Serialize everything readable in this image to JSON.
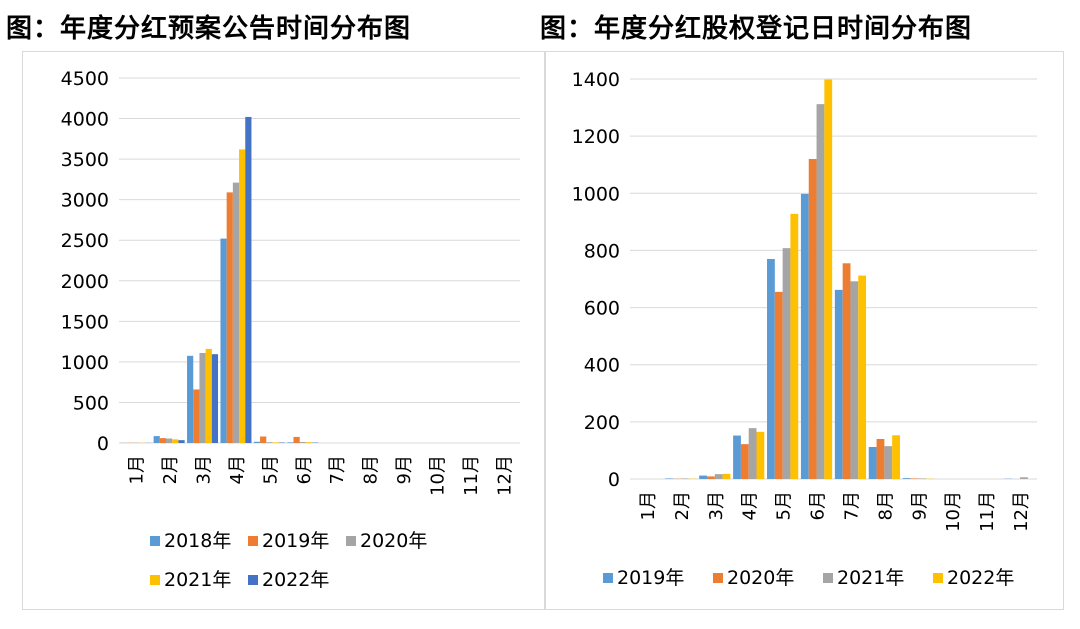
{
  "titles": {
    "left": "图：年度分红预案公告时间分布图",
    "right": "图：年度分红股权登记日时间分布图"
  },
  "chart_data": [
    {
      "type": "bar",
      "title": "图：年度分红预案公告时间分布图",
      "categories": [
        "1月",
        "2月",
        "3月",
        "4月",
        "5月",
        "6月",
        "7月",
        "8月",
        "9月",
        "10月",
        "11月",
        "12月"
      ],
      "ylim": [
        0,
        4500
      ],
      "yticks": [
        0,
        500,
        1000,
        1500,
        2000,
        2500,
        3000,
        3500,
        4000,
        4500
      ],
      "grid": true,
      "legend_position": "bottom",
      "series": [
        {
          "name": "2018年",
          "color": "#5b9bd5",
          "values": [
            2,
            85,
            1075,
            2520,
            15,
            8,
            0,
            0,
            0,
            0,
            0,
            0
          ]
        },
        {
          "name": "2019年",
          "color": "#ed7d31",
          "values": [
            3,
            60,
            660,
            3090,
            80,
            75,
            0,
            0,
            0,
            0,
            0,
            0
          ]
        },
        {
          "name": "2020年",
          "color": "#a5a5a5",
          "values": [
            4,
            55,
            1110,
            3210,
            10,
            12,
            0,
            0,
            0,
            0,
            0,
            0
          ]
        },
        {
          "name": "2021年",
          "color": "#ffc000",
          "values": [
            3,
            45,
            1160,
            3620,
            8,
            10,
            0,
            0,
            0,
            0,
            0,
            0
          ]
        },
        {
          "name": "2022年",
          "color": "#4472c4",
          "values": [
            2,
            35,
            1095,
            4020,
            6,
            5,
            0,
            0,
            0,
            0,
            0,
            0
          ]
        }
      ]
    },
    {
      "type": "bar",
      "title": "图：年度分红股权登记日时间分布图",
      "categories": [
        "1月",
        "2月",
        "3月",
        "4月",
        "5月",
        "6月",
        "7月",
        "8月",
        "9月",
        "10月",
        "11月",
        "12月"
      ],
      "ylim": [
        0,
        1400
      ],
      "yticks": [
        0,
        200,
        400,
        600,
        800,
        1000,
        1200,
        1400
      ],
      "grid": true,
      "legend_position": "bottom",
      "series": [
        {
          "name": "2019年",
          "color": "#5b9bd5",
          "values": [
            0,
            2,
            12,
            152,
            770,
            998,
            662,
            112,
            3,
            0,
            0,
            1
          ]
        },
        {
          "name": "2020年",
          "color": "#ed7d31",
          "values": [
            0,
            1,
            9,
            122,
            655,
            1120,
            755,
            140,
            2,
            0,
            0,
            0
          ]
        },
        {
          "name": "2021年",
          "color": "#a5a5a5",
          "values": [
            0,
            2,
            17,
            178,
            808,
            1312,
            692,
            115,
            2,
            0,
            0,
            6
          ]
        },
        {
          "name": "2022年",
          "color": "#ffc000",
          "values": [
            0,
            1,
            18,
            165,
            928,
            1398,
            712,
            153,
            1,
            0,
            0,
            0
          ]
        }
      ]
    }
  ]
}
